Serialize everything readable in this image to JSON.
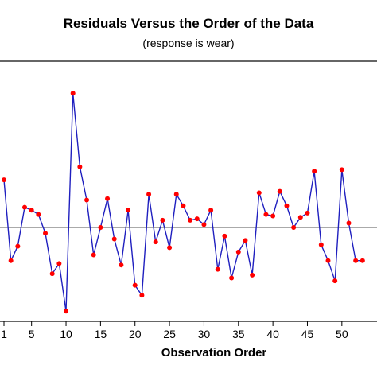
{
  "chart_data": {
    "type": "line",
    "title": "Residuals Versus the Order of the Data",
    "subtitle": "(response is wear)",
    "xlabel": "Observation Order",
    "ylabel": "",
    "xticks": [
      1,
      5,
      10,
      15,
      20,
      25,
      30,
      35,
      40,
      45,
      50
    ],
    "xlim": [
      1,
      53
    ],
    "ylim": [
      -0.63,
      0.97
    ],
    "reference_line": 0,
    "grid": false,
    "legend": "none",
    "colors": {
      "line": "#1f1fbf",
      "marker": "#ff0000",
      "reference": "#555555",
      "axis": "#000000"
    },
    "series": [
      {
        "x": [
          1,
          2,
          3,
          4,
          5,
          6,
          7,
          8,
          9,
          10,
          11,
          12,
          13,
          14,
          15,
          16,
          17,
          18,
          19,
          20,
          21,
          22,
          23,
          24,
          25,
          26,
          27,
          28,
          29,
          30,
          31,
          32,
          33,
          34,
          35,
          36,
          37,
          38,
          39,
          40,
          41,
          42,
          43,
          44,
          45,
          46,
          47,
          48,
          49,
          50,
          51,
          52,
          53
        ],
        "values": [
          0.33,
          -0.23,
          -0.13,
          0.14,
          0.12,
          0.09,
          -0.04,
          -0.32,
          -0.25,
          -0.58,
          0.93,
          0.42,
          0.19,
          -0.19,
          0.0,
          0.2,
          -0.08,
          -0.26,
          0.12,
          -0.4,
          -0.47,
          0.23,
          -0.1,
          0.05,
          -0.14,
          0.23,
          0.15,
          0.05,
          0.06,
          0.02,
          0.12,
          -0.29,
          -0.06,
          -0.35,
          -0.17,
          -0.09,
          -0.33,
          0.24,
          0.09,
          0.08,
          0.25,
          0.15,
          0.0,
          0.07,
          0.1,
          0.39,
          -0.12,
          -0.23,
          -0.37,
          0.4,
          0.03,
          -0.23,
          -0.23
        ]
      }
    ]
  }
}
